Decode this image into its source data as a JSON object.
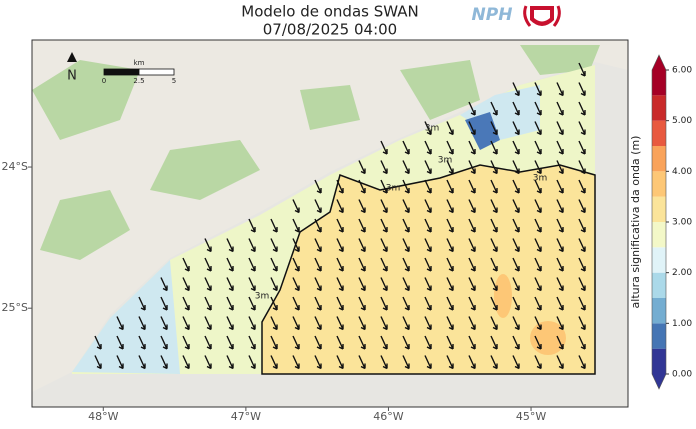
{
  "header": {
    "title": "Modelo de ondas SWAN",
    "datetime": "07/08/2025 04:00",
    "logo_text": "NPH"
  },
  "map": {
    "xlim": [
      -48.5,
      -44.32
    ],
    "ylim": [
      -25.7,
      -23.1
    ],
    "xticks": [
      {
        "value": -48,
        "label": "48°W"
      },
      {
        "value": -47,
        "label": "47°W"
      },
      {
        "value": -46,
        "label": "46°W"
      },
      {
        "value": -45,
        "label": "45°W"
      }
    ],
    "yticks": [
      {
        "value": -24,
        "label": "24°S"
      },
      {
        "value": -25,
        "label": "25°S"
      }
    ],
    "north_label": "N",
    "scale_bar": {
      "unit": "km",
      "ticks": [
        0,
        2.5,
        5
      ]
    },
    "contour_labels": [
      "3m",
      "3m",
      "3m",
      "3m",
      "3m"
    ]
  },
  "colorbar": {
    "label": "altura significativa da onda (m)",
    "lim": [
      0,
      6
    ],
    "ticks": [
      {
        "value": 0,
        "label": "0.00"
      },
      {
        "value": 1,
        "label": "1.00"
      },
      {
        "value": 2,
        "label": "2.00"
      },
      {
        "value": 3,
        "label": "3.00"
      },
      {
        "value": 4,
        "label": "4.00"
      },
      {
        "value": 5,
        "label": "5.00"
      },
      {
        "value": 6,
        "label": "6.00"
      }
    ],
    "levels": [
      0,
      0.5,
      1,
      1.5,
      2,
      2.5,
      3,
      3.5,
      4,
      4.5,
      5,
      5.5,
      6
    ],
    "colors": [
      "#313695",
      "#4575b4",
      "#74add1",
      "#abd9e9",
      "#e0f3f8",
      "#f3f8c8",
      "#fbe49a",
      "#fdc776",
      "#f9a35b",
      "#e8593f",
      "#c92a2a",
      "#a50026"
    ],
    "extend_colors": [
      "#313695",
      "#a50026"
    ]
  }
}
